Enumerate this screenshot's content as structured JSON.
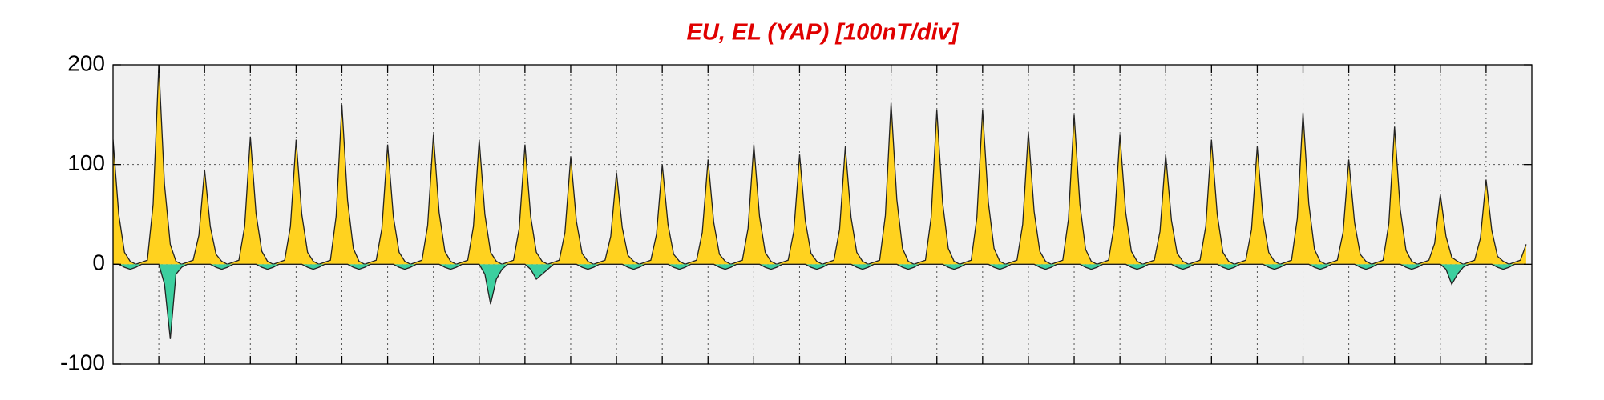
{
  "chart_data": {
    "type": "area",
    "title": "EU, EL (YAP)  [100nT/div]",
    "xlim": [
      0,
      31
    ],
    "xticks": [
      1,
      2,
      3,
      4,
      5,
      6,
      7,
      8,
      9,
      10,
      11,
      12,
      13,
      14,
      15,
      16,
      17,
      18,
      19,
      20,
      21,
      22,
      23,
      24,
      25,
      26,
      27,
      28,
      29,
      30
    ],
    "ylim": [
      -100,
      200
    ],
    "yticks": [
      -100,
      0,
      100,
      200
    ],
    "grid": true,
    "series": [
      {
        "color": "#ffd21f",
        "values": [
          125,
          50,
          12,
          3,
          0,
          2,
          4,
          60,
          200,
          80,
          20,
          3,
          0,
          2,
          4,
          29,
          95,
          38,
          10,
          3,
          0,
          2,
          4,
          38,
          128,
          51,
          13,
          3,
          0,
          2,
          4,
          38,
          125,
          50,
          12,
          3,
          0,
          2,
          4,
          48,
          160,
          64,
          16,
          3,
          0,
          2,
          4,
          36,
          120,
          48,
          12,
          3,
          0,
          2,
          4,
          39,
          130,
          52,
          13,
          3,
          0,
          2,
          4,
          38,
          125,
          50,
          12,
          3,
          0,
          2,
          4,
          36,
          120,
          48,
          12,
          3,
          0,
          2,
          4,
          32,
          108,
          43,
          11,
          3,
          0,
          2,
          4,
          28,
          92,
          37,
          9,
          3,
          0,
          2,
          4,
          30,
          100,
          40,
          10,
          3,
          0,
          2,
          4,
          32,
          105,
          42,
          10,
          3,
          0,
          2,
          4,
          36,
          120,
          48,
          12,
          3,
          0,
          2,
          4,
          33,
          110,
          44,
          11,
          3,
          0,
          2,
          4,
          35,
          118,
          47,
          12,
          3,
          0,
          2,
          4,
          49,
          162,
          65,
          16,
          3,
          0,
          2,
          4,
          47,
          155,
          62,
          16,
          3,
          0,
          2,
          4,
          47,
          155,
          62,
          16,
          3,
          0,
          2,
          4,
          40,
          133,
          53,
          13,
          3,
          0,
          2,
          4,
          45,
          150,
          60,
          15,
          3,
          0,
          2,
          4,
          39,
          130,
          52,
          13,
          3,
          0,
          2,
          4,
          33,
          110,
          44,
          11,
          3,
          0,
          2,
          4,
          38,
          125,
          50,
          12,
          3,
          0,
          2,
          4,
          35,
          118,
          47,
          12,
          3,
          0,
          2,
          4,
          46,
          152,
          61,
          15,
          3,
          0,
          2,
          4,
          32,
          105,
          42,
          10,
          3,
          0,
          2,
          4,
          41,
          138,
          55,
          14,
          3,
          0,
          2,
          4,
          21,
          70,
          28,
          7,
          3,
          0,
          2,
          4,
          26,
          85,
          34,
          8,
          3,
          0,
          2,
          4,
          20
        ]
      },
      {
        "color": "#3ccf9f",
        "values": [
          0,
          0,
          -3,
          -5,
          -3,
          0,
          0,
          0,
          0,
          -20,
          -75,
          -10,
          -3,
          0,
          0,
          0,
          0,
          0,
          -3,
          -5,
          -3,
          0,
          0,
          0,
          0,
          0,
          -3,
          -5,
          -3,
          0,
          0,
          0,
          0,
          0,
          -3,
          -5,
          -3,
          0,
          0,
          0,
          0,
          0,
          -3,
          -5,
          -3,
          0,
          0,
          0,
          0,
          0,
          -3,
          -5,
          -3,
          0,
          0,
          0,
          0,
          0,
          -3,
          -5,
          -3,
          0,
          0,
          0,
          0,
          -10,
          -40,
          -15,
          -5,
          0,
          0,
          0,
          0,
          -5,
          -15,
          -10,
          -5,
          0,
          0,
          0,
          0,
          0,
          -3,
          -5,
          -3,
          0,
          0,
          0,
          0,
          0,
          -3,
          -5,
          -3,
          0,
          0,
          0,
          0,
          0,
          -3,
          -5,
          -3,
          0,
          0,
          0,
          0,
          0,
          -3,
          -5,
          -3,
          0,
          0,
          0,
          0,
          0,
          -3,
          -5,
          -3,
          0,
          0,
          0,
          0,
          0,
          -3,
          -5,
          -3,
          0,
          0,
          0,
          0,
          0,
          -3,
          -5,
          -3,
          0,
          0,
          0,
          0,
          0,
          -3,
          -5,
          -3,
          0,
          0,
          0,
          0,
          0,
          -3,
          -5,
          -3,
          0,
          0,
          0,
          0,
          0,
          -3,
          -5,
          -3,
          0,
          0,
          0,
          0,
          0,
          -3,
          -5,
          -3,
          0,
          0,
          0,
          0,
          0,
          -3,
          -5,
          -3,
          0,
          0,
          0,
          0,
          0,
          -3,
          -5,
          -3,
          0,
          0,
          0,
          0,
          0,
          -3,
          -5,
          -3,
          0,
          0,
          0,
          0,
          0,
          -3,
          -5,
          -3,
          0,
          0,
          0,
          0,
          0,
          -3,
          -5,
          -3,
          0,
          0,
          0,
          0,
          0,
          -3,
          -5,
          -3,
          0,
          0,
          0,
          0,
          0,
          -3,
          -5,
          -3,
          0,
          0,
          0,
          0,
          0,
          -3,
          -5,
          -3,
          0,
          0,
          0,
          0,
          -5,
          -20,
          -10,
          -3,
          0,
          0,
          0,
          0,
          0,
          -3,
          -5,
          -3,
          0,
          0,
          0
        ]
      }
    ]
  }
}
